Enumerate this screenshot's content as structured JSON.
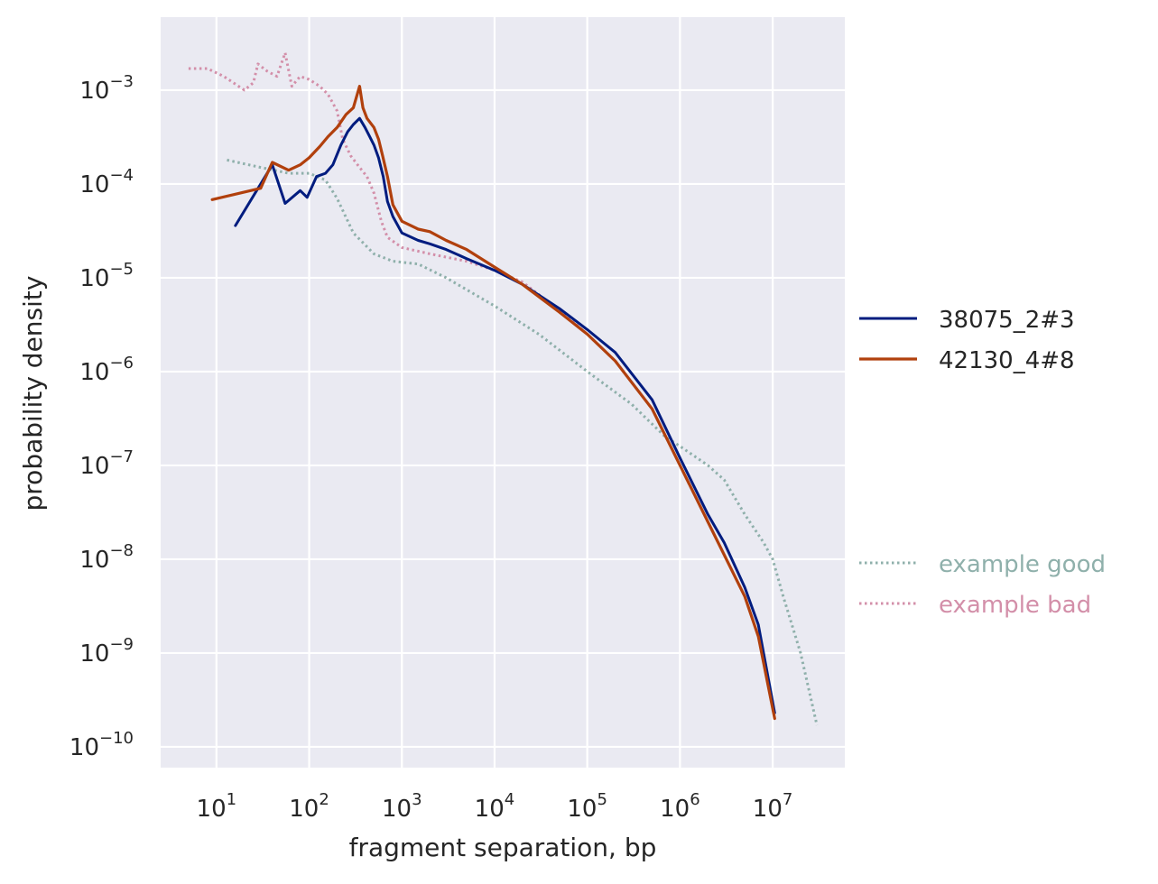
{
  "chart_data": {
    "type": "line",
    "title": "",
    "xlabel": "fragment separation, bp",
    "ylabel": "probability density",
    "x_scale": "log",
    "y_scale": "log",
    "xlim": [
      2.5,
      60000000
    ],
    "ylim": [
      6e-11,
      0.006
    ],
    "grid": true,
    "x_ticks": [
      {
        "base": "10",
        "exp": "1",
        "value": 10
      },
      {
        "base": "10",
        "exp": "2",
        "value": 100
      },
      {
        "base": "10",
        "exp": "3",
        "value": 1000
      },
      {
        "base": "10",
        "exp": "4",
        "value": 10000
      },
      {
        "base": "10",
        "exp": "5",
        "value": 100000
      },
      {
        "base": "10",
        "exp": "6",
        "value": 1000000
      },
      {
        "base": "10",
        "exp": "7",
        "value": 10000000
      }
    ],
    "y_ticks": [
      {
        "base": "10",
        "exp": "−3",
        "value": 0.001
      },
      {
        "base": "10",
        "exp": "−4",
        "value": 0.0001
      },
      {
        "base": "10",
        "exp": "−5",
        "value": 1e-05
      },
      {
        "base": "10",
        "exp": "−6",
        "value": 1e-06
      },
      {
        "base": "10",
        "exp": "−7",
        "value": 1e-07
      },
      {
        "base": "10",
        "exp": "−8",
        "value": 1e-08
      },
      {
        "base": "10",
        "exp": "−9",
        "value": 1e-09
      },
      {
        "base": "10",
        "exp": "−10",
        "value": 1e-10
      }
    ],
    "legend_placement": "right",
    "series": [
      {
        "name": "38075_2#3",
        "color": "#001c7f",
        "style": "solid",
        "width": 3,
        "points": [
          [
            16,
            3.6e-05
          ],
          [
            40,
            0.00016
          ],
          [
            55,
            6.2e-05
          ],
          [
            80,
            8.5e-05
          ],
          [
            95,
            7.2e-05
          ],
          [
            120,
            0.00012
          ],
          [
            150,
            0.00013
          ],
          [
            180,
            0.00016
          ],
          [
            220,
            0.00026
          ],
          [
            260,
            0.00036
          ],
          [
            300,
            0.00043
          ],
          [
            350,
            0.0005
          ],
          [
            400,
            0.0004
          ],
          [
            450,
            0.00032
          ],
          [
            500,
            0.00026
          ],
          [
            560,
            0.00019
          ],
          [
            630,
            0.00012
          ],
          [
            700,
            6.5e-05
          ],
          [
            800,
            4.5e-05
          ],
          [
            1000,
            3e-05
          ],
          [
            1500,
            2.5e-05
          ],
          [
            2000,
            2.3e-05
          ],
          [
            3000,
            2e-05
          ],
          [
            5000,
            1.6e-05
          ],
          [
            10000,
            1.2e-05
          ],
          [
            20000,
            8.5e-06
          ],
          [
            50000,
            4.7e-06
          ],
          [
            100000,
            2.8e-06
          ],
          [
            200000,
            1.6e-06
          ],
          [
            500000,
            5e-07
          ],
          [
            1000000,
            1.2e-07
          ],
          [
            2000000,
            3e-08
          ],
          [
            3000000,
            1.5e-08
          ],
          [
            5000000,
            5e-09
          ],
          [
            7000000,
            2e-09
          ],
          [
            10500000,
            2.3e-10
          ]
        ]
      },
      {
        "name": "42130_4#8",
        "color": "#b1400d",
        "style": "solid",
        "width": 3.2,
        "points": [
          [
            9,
            6.8e-05
          ],
          [
            30,
            9e-05
          ],
          [
            40,
            0.00017
          ],
          [
            60,
            0.00014
          ],
          [
            80,
            0.00016
          ],
          [
            100,
            0.00019
          ],
          [
            130,
            0.00025
          ],
          [
            160,
            0.00032
          ],
          [
            200,
            0.0004
          ],
          [
            250,
            0.00055
          ],
          [
            300,
            0.00065
          ],
          [
            350,
            0.0011
          ],
          [
            380,
            0.00065
          ],
          [
            420,
            0.0005
          ],
          [
            500,
            0.0004
          ],
          [
            560,
            0.0003
          ],
          [
            620,
            0.0002
          ],
          [
            700,
            0.00012
          ],
          [
            800,
            6e-05
          ],
          [
            1000,
            4e-05
          ],
          [
            1500,
            3.3e-05
          ],
          [
            2000,
            3.1e-05
          ],
          [
            3000,
            2.5e-05
          ],
          [
            5000,
            2e-05
          ],
          [
            10000,
            1.3e-05
          ],
          [
            20000,
            8.5e-06
          ],
          [
            50000,
            4.3e-06
          ],
          [
            100000,
            2.5e-06
          ],
          [
            200000,
            1.3e-06
          ],
          [
            500000,
            4e-07
          ],
          [
            1000000,
            1e-07
          ],
          [
            2000000,
            2.5e-08
          ],
          [
            5000000,
            4e-09
          ],
          [
            7000000,
            1.5e-09
          ],
          [
            10500000,
            2e-10
          ]
        ]
      },
      {
        "name": "example good",
        "color": "#8fb0ab",
        "style": "dotted",
        "width": 3,
        "points": [
          [
            13,
            0.00018
          ],
          [
            30,
            0.00015
          ],
          [
            60,
            0.00013
          ],
          [
            100,
            0.00013
          ],
          [
            150,
            0.00011
          ],
          [
            200,
            7e-05
          ],
          [
            300,
            3e-05
          ],
          [
            500,
            1.8e-05
          ],
          [
            800,
            1.5e-05
          ],
          [
            1500,
            1.4e-05
          ],
          [
            3000,
            1e-05
          ],
          [
            10000,
            5e-06
          ],
          [
            30000,
            2.5e-06
          ],
          [
            100000,
            1e-06
          ],
          [
            300000,
            4.5e-07
          ],
          [
            700000,
            2e-07
          ],
          [
            1000000,
            1.6e-07
          ],
          [
            2000000,
            1e-07
          ],
          [
            3000000,
            7e-08
          ],
          [
            5000000,
            3e-08
          ],
          [
            8000000,
            1.5e-08
          ],
          [
            10000000,
            1e-08
          ],
          [
            13000000,
            4e-09
          ],
          [
            20000000,
            1e-09
          ],
          [
            30000000,
            1.7e-10
          ]
        ]
      },
      {
        "name": "example bad",
        "color": "#d38fa9",
        "style": "dotted",
        "width": 3,
        "points": [
          [
            5,
            0.0017
          ],
          [
            8,
            0.0017
          ],
          [
            12,
            0.0014
          ],
          [
            20,
            0.001
          ],
          [
            25,
            0.0012
          ],
          [
            28,
            0.0019
          ],
          [
            35,
            0.0016
          ],
          [
            45,
            0.0014
          ],
          [
            55,
            0.0025
          ],
          [
            65,
            0.0011
          ],
          [
            80,
            0.0014
          ],
          [
            100,
            0.0013
          ],
          [
            130,
            0.0011
          ],
          [
            160,
            0.0009
          ],
          [
            200,
            0.0006
          ],
          [
            230,
            0.0003
          ],
          [
            280,
            0.0002
          ],
          [
            350,
            0.00015
          ],
          [
            420,
            0.00012
          ],
          [
            500,
            8e-05
          ],
          [
            600,
            4e-05
          ],
          [
            700,
            2.7e-05
          ],
          [
            1000,
            2.1e-05
          ],
          [
            2000,
            1.8e-05
          ],
          [
            5000,
            1.5e-05
          ],
          [
            10000,
            1.2e-05
          ],
          [
            20000,
            9e-06
          ],
          [
            50000,
            4.5e-06
          ],
          [
            100000,
            2.5e-06
          ],
          [
            200000,
            1.3e-06
          ],
          [
            500000,
            4e-07
          ],
          [
            1000000,
            1e-07
          ],
          [
            2000000,
            2.5e-08
          ]
        ]
      }
    ]
  }
}
